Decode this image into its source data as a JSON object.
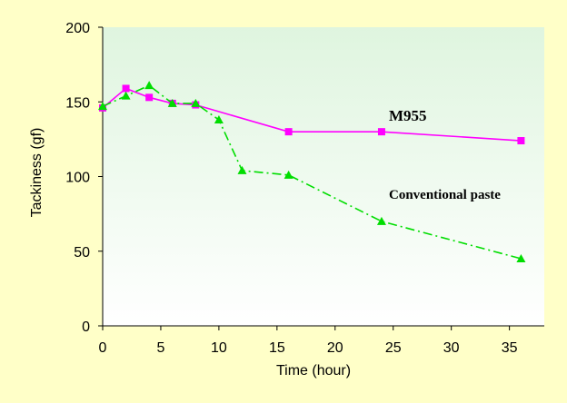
{
  "chart_data": {
    "type": "line",
    "title": "",
    "xlabel": "Time (hour)",
    "ylabel": "Tackiness (gf)",
    "xlim": [
      0,
      38
    ],
    "ylim": [
      0,
      200
    ],
    "xticks": [
      0,
      5,
      10,
      15,
      20,
      25,
      30,
      35
    ],
    "yticks": [
      0,
      50,
      100,
      150,
      200
    ],
    "grid": false,
    "legend": "none",
    "series": [
      {
        "name": "M955",
        "color": "#ff00ff",
        "marker": "square",
        "line_style": "solid",
        "x": [
          0,
          2,
          4,
          6,
          8,
          16,
          24,
          36
        ],
        "y": [
          146,
          159,
          153,
          149,
          148,
          130,
          130,
          124
        ]
      },
      {
        "name": "Conventional paste",
        "color": "#00dd00",
        "marker": "triangle",
        "line_style": "dash-dot",
        "x": [
          0,
          2,
          4,
          6,
          8,
          10,
          12,
          16,
          24,
          36
        ],
        "y": [
          147,
          154,
          161,
          149,
          149,
          138,
          104,
          101,
          70,
          45
        ]
      }
    ]
  }
}
